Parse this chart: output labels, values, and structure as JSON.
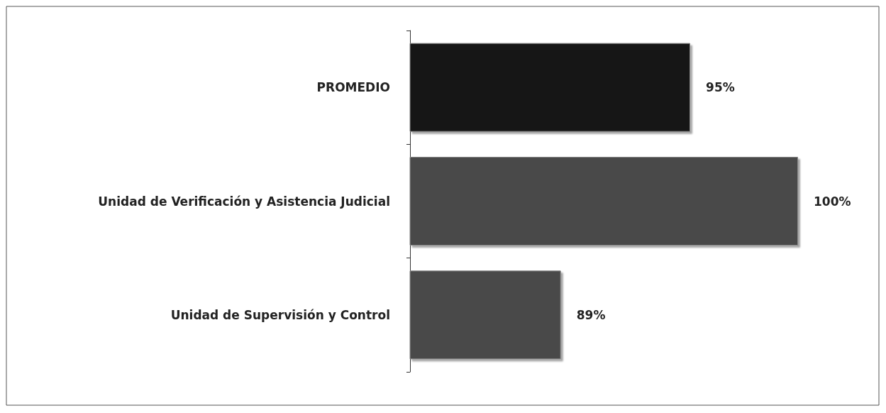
{
  "chart_data": {
    "type": "bar",
    "orientation": "horizontal",
    "categories": [
      "PROMEDIO",
      "Unidad de Verificación y Asistencia Judicial",
      "Unidad de Supervisión y Control"
    ],
    "values": [
      95,
      100,
      89
    ],
    "colors": [
      "#141414",
      "#4a4a4a",
      "#4a4a4a"
    ],
    "value_labels": [
      "95%",
      "100%",
      "89%"
    ],
    "xlim": [
      82,
      100
    ],
    "tick_labels": "y",
    "grid": false
  }
}
